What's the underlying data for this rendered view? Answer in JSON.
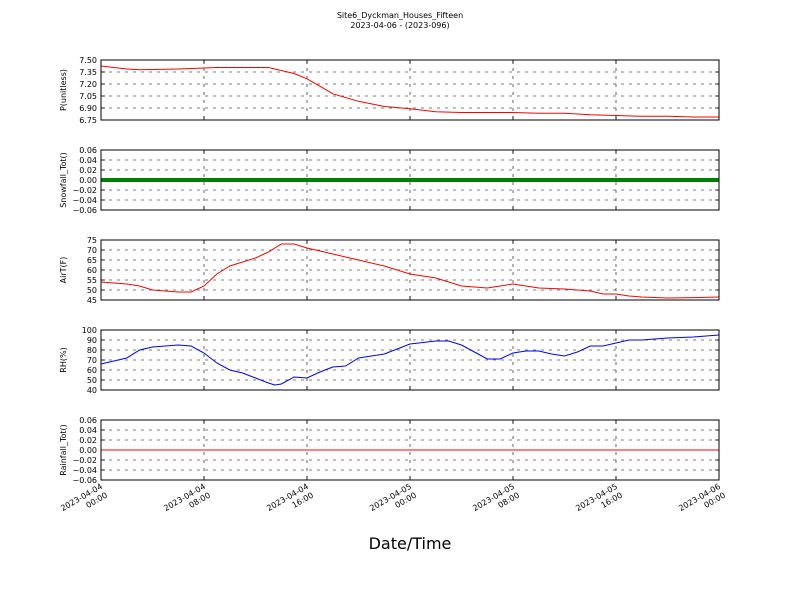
{
  "title": "Site6_Dyckman_Houses_Fifteen",
  "subtitle": "2023-04-06 - (2023-096)",
  "xlabel": "Date/Time",
  "x_ticks": [
    {
      "line1": "2023-04-04",
      "line2": "00:00"
    },
    {
      "line1": "2023-04-04",
      "line2": "08:00"
    },
    {
      "line1": "2023-04-04",
      "line2": "16:00"
    },
    {
      "line1": "2023-04-05",
      "line2": "00:00"
    },
    {
      "line1": "2023-04-05",
      "line2": "08:00"
    },
    {
      "line1": "2023-04-05",
      "line2": "16:00"
    },
    {
      "line1": "2023-04-06",
      "line2": "00:00"
    }
  ],
  "chart_data": [
    {
      "type": "line",
      "ylabel": "P(unitless)",
      "ylim": [
        6.7,
        7.5
      ],
      "yticks": [
        "6.75",
        "6.90",
        "7.05",
        "7.20",
        "7.35",
        "7.50"
      ],
      "xlim": [
        "2023-04-04 00:00",
        "2023-04-06 00:00"
      ],
      "grid": true,
      "color": "#ff0000",
      "series": [
        {
          "x_hours": [
            0,
            2,
            3,
            6,
            9,
            13,
            15,
            16,
            17,
            18,
            20,
            22,
            24,
            26,
            28,
            30,
            32,
            34,
            36,
            38,
            40,
            42,
            44,
            46,
            48
          ],
          "values": [
            7.42,
            7.38,
            7.37,
            7.38,
            7.4,
            7.4,
            7.32,
            7.25,
            7.15,
            7.05,
            6.95,
            6.88,
            6.85,
            6.81,
            6.8,
            6.8,
            6.8,
            6.79,
            6.79,
            6.77,
            6.76,
            6.75,
            6.75,
            6.74,
            6.74
          ]
        }
      ]
    },
    {
      "type": "line",
      "ylabel": "Snowfall_Tot()",
      "ylim": [
        -0.06,
        0.06
      ],
      "yticks": [
        "−0.06",
        "−0.04",
        "−0.02",
        "0.00",
        "0.02",
        "0.04",
        "0.06"
      ],
      "xlim": [
        "2023-04-04 00:00",
        "2023-04-06 00:00"
      ],
      "grid": true,
      "color": "#008000",
      "series": [
        {
          "x_hours": [
            0,
            48
          ],
          "values": [
            0,
            0
          ]
        }
      ]
    },
    {
      "type": "line",
      "ylabel": "AirT(F)",
      "ylim": [
        45,
        75
      ],
      "yticks": [
        "45",
        "50",
        "55",
        "60",
        "65",
        "70",
        "75"
      ],
      "xlim": [
        "2023-04-04 00:00",
        "2023-04-06 00:00"
      ],
      "grid": true,
      "color": "#ff0000",
      "series": [
        {
          "x_hours": [
            0,
            2,
            3,
            4,
            6,
            7,
            8,
            9,
            10,
            12,
            13,
            14,
            15,
            16,
            18,
            20,
            22,
            24,
            26,
            28,
            30,
            31,
            32,
            34,
            36,
            38,
            39,
            40,
            41,
            42,
            44,
            46,
            48
          ],
          "values": [
            54,
            53,
            52,
            50,
            49,
            49,
            52,
            58,
            62,
            66,
            69,
            73,
            73,
            71,
            68,
            65,
            62,
            58,
            56,
            52,
            51,
            52,
            53,
            51,
            50.5,
            49.5,
            48,
            48,
            47,
            46.5,
            46,
            46.2,
            46.5
          ]
        }
      ]
    },
    {
      "type": "line",
      "ylabel": "RH(%)",
      "ylim": [
        40,
        100
      ],
      "yticks": [
        "40",
        "50",
        "60",
        "70",
        "80",
        "90",
        "100"
      ],
      "xlim": [
        "2023-04-04 00:00",
        "2023-04-06 00:00"
      ],
      "grid": true,
      "color": "#0000ff",
      "series": [
        {
          "x_hours": [
            0,
            1,
            2,
            3,
            4,
            5,
            6,
            7,
            8,
            9,
            10,
            11,
            12,
            13,
            13.5,
            14,
            15,
            16,
            17,
            18,
            19,
            20,
            22,
            24,
            26,
            27,
            28,
            29,
            30,
            31,
            32,
            33,
            34,
            35,
            36,
            37,
            38,
            39,
            40,
            41,
            42,
            44,
            46,
            48
          ],
          "values": [
            66,
            69,
            72,
            80,
            83,
            84,
            85,
            84,
            77,
            67,
            60,
            57,
            52,
            47,
            45,
            46,
            53,
            52,
            58,
            63,
            64,
            72,
            76,
            86,
            89,
            89,
            85,
            78,
            71,
            71,
            77,
            79,
            79,
            76,
            74,
            78,
            84,
            84,
            87,
            90,
            90,
            92,
            93,
            95
          ]
        }
      ]
    },
    {
      "type": "line",
      "ylabel": "Rainfall_Tot()",
      "ylim": [
        -0.06,
        0.06
      ],
      "yticks": [
        "−0.06",
        "−0.04",
        "−0.02",
        "0.00",
        "0.02",
        "0.04",
        "0.06"
      ],
      "xlim": [
        "2023-04-04 00:00",
        "2023-04-06 00:00"
      ],
      "grid": true,
      "color": "#ff0000",
      "series": [
        {
          "x_hours": [
            0,
            48
          ],
          "values": [
            0,
            0
          ]
        }
      ]
    }
  ]
}
